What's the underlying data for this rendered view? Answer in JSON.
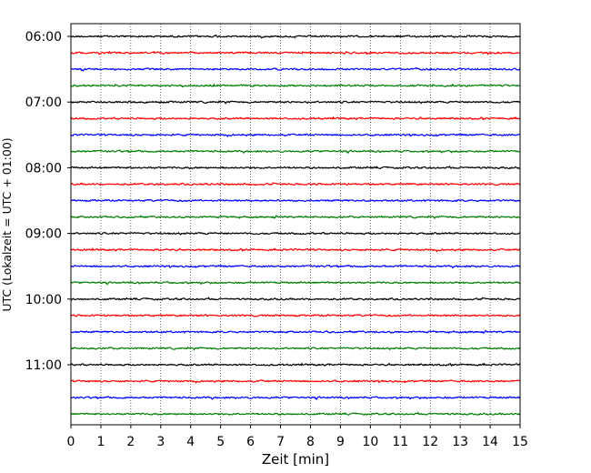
{
  "chart_data": {
    "type": "line",
    "title": "",
    "xlabel": "Zeit  [min]",
    "ylabel": "UTC (Lokalzeit = UTC + 01:00)",
    "xlim": [
      0,
      15
    ],
    "xticks": [
      "0",
      "1",
      "2",
      "3",
      "4",
      "5",
      "6",
      "7",
      "8",
      "9",
      "10",
      "11",
      "12",
      "13",
      "14",
      "15"
    ],
    "yticks": [
      "06:00",
      "07:00",
      "08:00",
      "09:00",
      "10:00",
      "11:00"
    ],
    "grid": "vertical dotted lines at each minute",
    "trace_colors": [
      "#000000",
      "#ff0000",
      "#0000ff",
      "#007f00"
    ],
    "series": [
      {
        "start": "06:00",
        "color": "#000000"
      },
      {
        "start": "06:15",
        "color": "#ff0000"
      },
      {
        "start": "06:30",
        "color": "#0000ff"
      },
      {
        "start": "06:45",
        "color": "#007f00"
      },
      {
        "start": "07:00",
        "color": "#000000"
      },
      {
        "start": "07:15",
        "color": "#ff0000"
      },
      {
        "start": "07:30",
        "color": "#0000ff"
      },
      {
        "start": "07:45",
        "color": "#007f00"
      },
      {
        "start": "08:00",
        "color": "#000000"
      },
      {
        "start": "08:15",
        "color": "#ff0000"
      },
      {
        "start": "08:30",
        "color": "#0000ff"
      },
      {
        "start": "08:45",
        "color": "#007f00"
      },
      {
        "start": "09:00",
        "color": "#000000"
      },
      {
        "start": "09:15",
        "color": "#ff0000"
      },
      {
        "start": "09:30",
        "color": "#0000ff"
      },
      {
        "start": "09:45",
        "color": "#007f00"
      },
      {
        "start": "10:00",
        "color": "#000000"
      },
      {
        "start": "10:15",
        "color": "#ff0000"
      },
      {
        "start": "10:30",
        "color": "#0000ff"
      },
      {
        "start": "10:45",
        "color": "#007f00"
      },
      {
        "start": "11:00",
        "color": "#000000"
      },
      {
        "start": "11:15",
        "color": "#ff0000"
      },
      {
        "start": "11:30",
        "color": "#0000ff"
      },
      {
        "start": "11:45",
        "color": "#007f00"
      }
    ]
  }
}
